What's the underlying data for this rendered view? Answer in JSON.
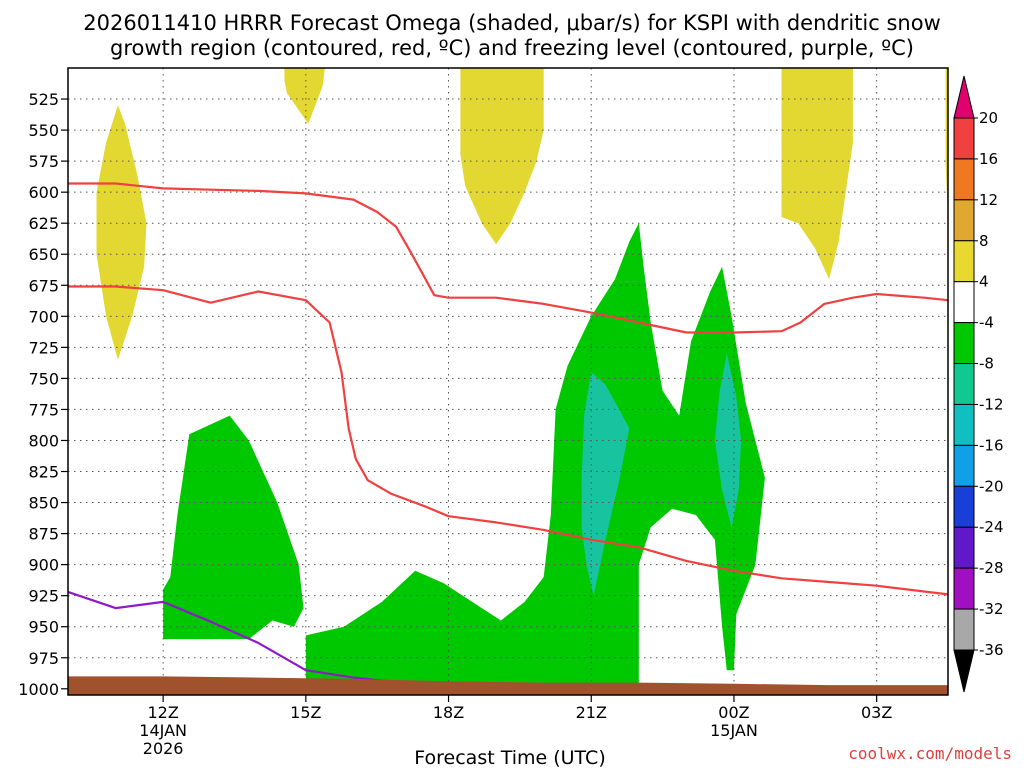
{
  "chart_data": {
    "type": "heatmap",
    "title_line1": "2026011410 HRRR Forecast Omega (shaded, μbar/s) for KSPI with dendritic snow",
    "title_line2": "growth region (contoured, red, ºC) and freezing level (contoured, purple, ºC)",
    "xlabel": "Forecast Time (UTC)",
    "credit": "coolwx.com/models",
    "x_range_hours": [
      10,
      28.5
    ],
    "y_range_hpa": [
      1005,
      500
    ],
    "y_ticks": [
      "525",
      "550",
      "575",
      "600",
      "625",
      "650",
      "675",
      "700",
      "725",
      "750",
      "775",
      "800",
      "825",
      "850",
      "875",
      "900",
      "925",
      "950",
      "975",
      "1000"
    ],
    "x_ticks": [
      {
        "hour": 12,
        "label": "12Z",
        "sub1": "14JAN",
        "sub2": "2026"
      },
      {
        "hour": 15,
        "label": "15Z",
        "sub1": "",
        "sub2": ""
      },
      {
        "hour": 18,
        "label": "18Z",
        "sub1": "",
        "sub2": ""
      },
      {
        "hour": 21,
        "label": "21Z",
        "sub1": "",
        "sub2": ""
      },
      {
        "hour": 24,
        "label": "00Z",
        "sub1": "15JAN",
        "sub2": ""
      },
      {
        "hour": 27,
        "label": "03Z",
        "sub1": "",
        "sub2": ""
      }
    ],
    "colorbar": {
      "labels": [
        "20",
        "16",
        "12",
        "8",
        "4",
        "-4",
        "-8",
        "-12",
        "-16",
        "-20",
        "-24",
        "-28",
        "-32",
        "-36"
      ],
      "colors": [
        "#e0006e",
        "#f04040",
        "#f07820",
        "#e0a830",
        "#e8d830",
        "#ffffff",
        "#00c800",
        "#10c890",
        "#10c0c0",
        "#10a0e8",
        "#1840d8",
        "#6018c8",
        "#a010c0",
        "#a8a8a8",
        "#000000"
      ]
    },
    "colors": {
      "positive_omega": "#e3d832",
      "negative_omega": "#00c800",
      "strong_negative_omega": "#18c4a0",
      "ground": "#a0522d",
      "dgz_contour": "#f04040",
      "freezing_contour": "#9018c8"
    },
    "shaded_regions": [
      {
        "name": "yellow-region-1",
        "fill": "#e3d832",
        "points": [
          [
            10.6,
            600
          ],
          [
            10.8,
            560
          ],
          [
            11.05,
            530
          ],
          [
            11.2,
            545
          ],
          [
            11.45,
            585
          ],
          [
            11.65,
            625
          ],
          [
            11.6,
            660
          ],
          [
            11.35,
            700
          ],
          [
            11.05,
            735
          ],
          [
            10.8,
            700
          ],
          [
            10.6,
            650
          ]
        ]
      },
      {
        "name": "yellow-region-2",
        "fill": "#e3d832",
        "points": [
          [
            14.55,
            500
          ],
          [
            15.4,
            500
          ],
          [
            15.35,
            515
          ],
          [
            15.05,
            545
          ],
          [
            14.6,
            520
          ],
          [
            14.55,
            510
          ]
        ]
      },
      {
        "name": "yellow-region-3",
        "fill": "#e3d832",
        "points": [
          [
            18.25,
            500
          ],
          [
            20.0,
            500
          ],
          [
            20.0,
            550
          ],
          [
            19.85,
            575
          ],
          [
            19.6,
            600
          ],
          [
            19.3,
            625
          ],
          [
            19.0,
            642
          ],
          [
            18.7,
            625
          ],
          [
            18.35,
            595
          ],
          [
            18.25,
            570
          ]
        ]
      },
      {
        "name": "yellow-region-4",
        "fill": "#e3d832",
        "points": [
          [
            25.0,
            500
          ],
          [
            26.5,
            500
          ],
          [
            26.5,
            560
          ],
          [
            26.35,
            600
          ],
          [
            26.2,
            640
          ],
          [
            26.0,
            670
          ],
          [
            25.7,
            645
          ],
          [
            25.35,
            625
          ],
          [
            25.0,
            620
          ]
        ]
      },
      {
        "name": "yellow-region-5",
        "fill": "#e3d832",
        "points": [
          [
            28.45,
            500
          ],
          [
            28.9,
            500
          ],
          [
            28.9,
            680
          ],
          [
            28.75,
            660
          ],
          [
            28.55,
            620
          ],
          [
            28.45,
            580
          ]
        ]
      },
      {
        "name": "green-region-1",
        "fill": "#00c800",
        "points": [
          [
            12.0,
            965
          ],
          [
            12.0,
            920
          ],
          [
            12.15,
            910
          ],
          [
            12.3,
            860
          ],
          [
            12.55,
            795
          ],
          [
            13.4,
            780
          ],
          [
            13.8,
            800
          ],
          [
            14.4,
            850
          ],
          [
            14.85,
            900
          ],
          [
            14.95,
            935
          ],
          [
            14.75,
            950
          ],
          [
            14.3,
            945
          ],
          [
            13.8,
            960
          ],
          [
            12.0,
            960
          ]
        ]
      },
      {
        "name": "green-region-2",
        "fill": "#00c800",
        "points": [
          [
            15.0,
            957
          ],
          [
            15.8,
            950
          ],
          [
            16.6,
            930
          ],
          [
            17.3,
            905
          ],
          [
            17.9,
            915
          ],
          [
            18.3,
            925
          ],
          [
            18.7,
            935
          ],
          [
            19.1,
            945
          ],
          [
            19.6,
            930
          ],
          [
            20.0,
            910
          ],
          [
            20.15,
            860
          ],
          [
            20.25,
            775
          ],
          [
            20.5,
            740
          ],
          [
            21.0,
            700
          ],
          [
            21.5,
            670
          ],
          [
            21.8,
            640
          ],
          [
            22.0,
            625
          ],
          [
            22.1,
            660
          ],
          [
            22.25,
            705
          ],
          [
            22.5,
            760
          ],
          [
            22.85,
            780
          ],
          [
            23.1,
            720
          ],
          [
            23.5,
            680
          ],
          [
            23.75,
            660
          ],
          [
            23.95,
            700
          ],
          [
            24.25,
            770
          ],
          [
            24.65,
            830
          ],
          [
            24.45,
            900
          ],
          [
            24.05,
            940
          ],
          [
            24.0,
            985
          ],
          [
            23.85,
            985
          ],
          [
            23.75,
            950
          ],
          [
            23.6,
            880
          ],
          [
            23.2,
            860
          ],
          [
            22.7,
            855
          ],
          [
            22.25,
            870
          ],
          [
            22.0,
            900
          ],
          [
            22.0,
            1000
          ],
          [
            15.0,
            1000
          ]
        ]
      },
      {
        "name": "teal-region-1",
        "fill": "#18c4a0",
        "points": [
          [
            20.8,
            830
          ],
          [
            20.85,
            780
          ],
          [
            21.0,
            745
          ],
          [
            21.3,
            755
          ],
          [
            21.8,
            790
          ],
          [
            21.6,
            830
          ],
          [
            21.3,
            880
          ],
          [
            21.05,
            925
          ],
          [
            20.9,
            900
          ],
          [
            20.8,
            870
          ]
        ]
      },
      {
        "name": "teal-region-2",
        "fill": "#18c4a0",
        "points": [
          [
            23.6,
            800
          ],
          [
            23.7,
            760
          ],
          [
            23.85,
            730
          ],
          [
            24.05,
            765
          ],
          [
            24.15,
            800
          ],
          [
            24.1,
            840
          ],
          [
            23.95,
            870
          ],
          [
            23.75,
            840
          ]
        ]
      }
    ],
    "lines": [
      {
        "name": "dgz-upper-line",
        "color": "#f04040",
        "points": [
          [
            10.0,
            593
          ],
          [
            11.0,
            593
          ],
          [
            12.0,
            597
          ],
          [
            13.0,
            598
          ],
          [
            14.0,
            599
          ],
          [
            15.0,
            601
          ],
          [
            16.0,
            606
          ],
          [
            16.5,
            616
          ],
          [
            16.9,
            628
          ],
          [
            17.2,
            648
          ],
          [
            17.5,
            669
          ],
          [
            17.7,
            683
          ],
          [
            18.0,
            685
          ],
          [
            19.0,
            685
          ],
          [
            20.0,
            690
          ],
          [
            21.0,
            697
          ],
          [
            22.0,
            705
          ],
          [
            23.0,
            713
          ],
          [
            24.0,
            713
          ],
          [
            25.0,
            712
          ],
          [
            25.4,
            705
          ],
          [
            25.9,
            690
          ],
          [
            26.5,
            685
          ],
          [
            27.0,
            682
          ],
          [
            28.0,
            685
          ],
          [
            28.5,
            687
          ]
        ]
      },
      {
        "name": "dgz-lower-line",
        "color": "#f04040",
        "points": [
          [
            10.0,
            676
          ],
          [
            11.0,
            676
          ],
          [
            12.0,
            679
          ],
          [
            13.0,
            689
          ],
          [
            14.0,
            680
          ],
          [
            15.0,
            687
          ],
          [
            15.5,
            705
          ],
          [
            15.75,
            745
          ],
          [
            15.9,
            790
          ],
          [
            16.05,
            815
          ],
          [
            16.3,
            832
          ],
          [
            16.8,
            843
          ],
          [
            17.5,
            853
          ],
          [
            18.0,
            861
          ],
          [
            19.0,
            866
          ],
          [
            20.0,
            872
          ],
          [
            21.0,
            880
          ],
          [
            22.0,
            886
          ],
          [
            23.0,
            897
          ],
          [
            24.0,
            905
          ],
          [
            25.0,
            911
          ],
          [
            26.0,
            914
          ],
          [
            27.0,
            917
          ],
          [
            28.5,
            924
          ]
        ]
      },
      {
        "name": "freezing-level-line",
        "color": "#9018c8",
        "points": [
          [
            10.0,
            922
          ],
          [
            11.0,
            935
          ],
          [
            12.0,
            930
          ],
          [
            13.0,
            946
          ],
          [
            14.0,
            963
          ],
          [
            15.0,
            985
          ],
          [
            16.0,
            991
          ],
          [
            17.0,
            995
          ]
        ]
      }
    ],
    "ground": {
      "points": [
        [
          10.0,
          990
        ],
        [
          12.0,
          990
        ],
        [
          14.0,
          991
        ],
        [
          16.0,
          992
        ],
        [
          18.0,
          994
        ],
        [
          20.0,
          995
        ],
        [
          22.0,
          995
        ],
        [
          24.0,
          996
        ],
        [
          26.0,
          997
        ],
        [
          28.5,
          997
        ]
      ]
    }
  }
}
